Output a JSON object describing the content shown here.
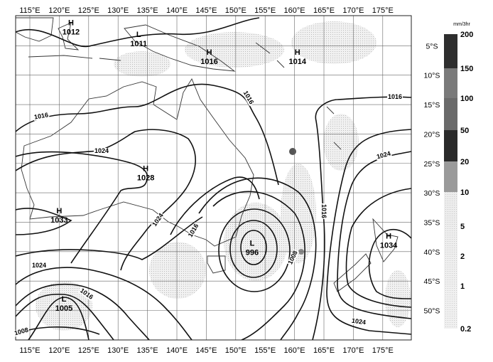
{
  "map": {
    "lon_labels": [
      "115°E",
      "120°E",
      "125°E",
      "130°E",
      "135°E",
      "140°E",
      "145°E",
      "150°E",
      "155°E",
      "160°E",
      "165°E",
      "170°E",
      "175°E"
    ],
    "lat_labels": [
      "5°S",
      "10°S",
      "15°S",
      "20°S",
      "25°S",
      "30°S",
      "35°S",
      "40°S",
      "45°S",
      "50°S"
    ],
    "extent": {
      "lon": [
        112.5,
        180
      ],
      "lat": [
        0,
        -55
      ]
    },
    "grid_spacing_deg": 5,
    "pressure_centers": [
      {
        "type": "H",
        "value": "1012",
        "lon": 122,
        "lat": -2
      },
      {
        "type": "L",
        "value": "1011",
        "lon": 133.5,
        "lat": -4
      },
      {
        "type": "H",
        "value": "1016",
        "lon": 145.5,
        "lat": -7
      },
      {
        "type": "H",
        "value": "1014",
        "lon": 160.5,
        "lat": -7
      },
      {
        "type": "H",
        "value": "1028",
        "lon": 134.7,
        "lat": -26.8
      },
      {
        "type": "H",
        "value": "1033",
        "lon": 120,
        "lat": -34
      },
      {
        "type": "L",
        "value": "996",
        "lon": 152.8,
        "lat": -39.5
      },
      {
        "type": "H",
        "value": "1034",
        "lon": 176,
        "lat": -38.3
      },
      {
        "type": "L",
        "value": "1005",
        "lon": 120.8,
        "lat": -49
      }
    ],
    "isobar_labels": [
      "1016",
      "1024",
      "1016",
      "1016",
      "1024",
      "1024",
      "1016",
      "1008",
      "1016",
      "1024",
      "1016",
      "1008",
      "1024"
    ]
  },
  "legend": {
    "unit": "mm/3hr",
    "values": [
      "200",
      "150",
      "100",
      "50",
      "20",
      "10",
      "5",
      "2",
      "1",
      "0.2"
    ],
    "colors": [
      "#2e2e2e",
      "#7a7a7a",
      "#6a6a6a",
      "#2a2a2a",
      "#9a9a9a",
      "#e2e2e2",
      "#e6e6e6",
      "#e9e9e9",
      "#ececec"
    ]
  }
}
